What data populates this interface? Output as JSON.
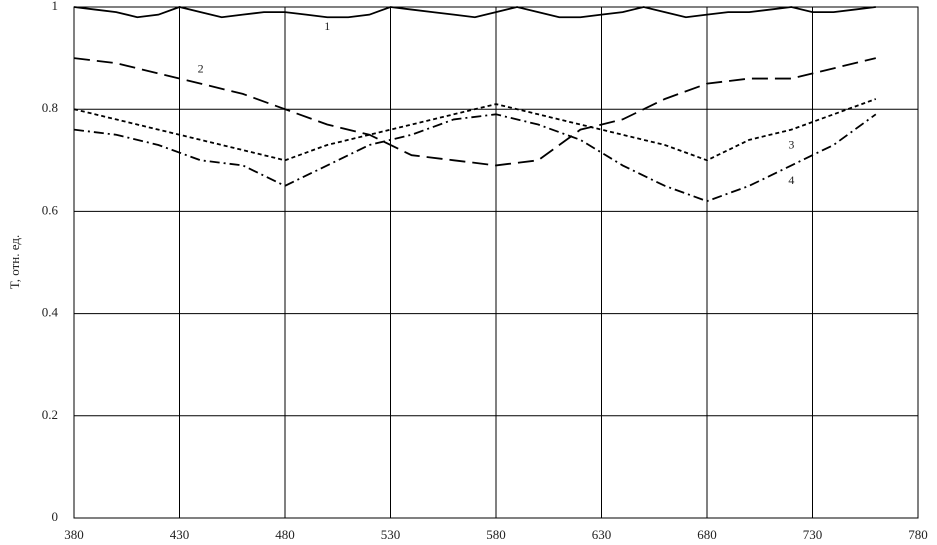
{
  "chart_data": {
    "type": "line",
    "ylabel": "T, отн. ед.",
    "xlim": [
      380,
      780
    ],
    "xticks": [
      380,
      430,
      480,
      530,
      580,
      630,
      680,
      730,
      780
    ],
    "ylim": [
      0,
      1
    ],
    "yticks": [
      0,
      0.2,
      0.4,
      0.6,
      0.8,
      1
    ],
    "grid": true,
    "series": [
      {
        "name": "1",
        "color": "#000000",
        "dash": "none",
        "x": [
          380,
          390,
          400,
          410,
          420,
          430,
          440,
          450,
          460,
          470,
          480,
          490,
          500,
          510,
          520,
          530,
          540,
          550,
          560,
          570,
          580,
          590,
          600,
          610,
          620,
          630,
          640,
          650,
          660,
          670,
          680,
          690,
          700,
          710,
          720,
          730,
          740,
          750,
          760
        ],
        "values": [
          1.0,
          0.995,
          0.99,
          0.98,
          0.985,
          1.0,
          0.99,
          0.98,
          0.985,
          0.99,
          0.99,
          0.985,
          0.98,
          0.98,
          0.985,
          1.0,
          0.995,
          0.99,
          0.985,
          0.98,
          0.99,
          1.0,
          0.99,
          0.98,
          0.98,
          0.985,
          0.99,
          1.0,
          0.99,
          0.98,
          0.985,
          0.99,
          0.99,
          0.995,
          1.0,
          0.99,
          0.99,
          0.995,
          1.0
        ]
      },
      {
        "name": "2",
        "color": "#000000",
        "dash": "16,7",
        "x": [
          380,
          400,
          420,
          440,
          460,
          480,
          500,
          520,
          540,
          560,
          580,
          600,
          620,
          640,
          660,
          680,
          700,
          720,
          740,
          760
        ],
        "values": [
          0.9,
          0.89,
          0.87,
          0.85,
          0.83,
          0.8,
          0.77,
          0.75,
          0.71,
          0.7,
          0.69,
          0.7,
          0.76,
          0.78,
          0.82,
          0.85,
          0.86,
          0.86,
          0.88,
          0.9
        ]
      },
      {
        "name": "3",
        "color": "#000000",
        "dash": "4,3",
        "x": [
          380,
          400,
          420,
          440,
          460,
          480,
          500,
          520,
          540,
          560,
          580,
          600,
          620,
          640,
          660,
          680,
          700,
          720,
          740,
          760
        ],
        "values": [
          0.8,
          0.78,
          0.76,
          0.74,
          0.72,
          0.7,
          0.73,
          0.75,
          0.77,
          0.79,
          0.81,
          0.79,
          0.77,
          0.75,
          0.73,
          0.7,
          0.74,
          0.76,
          0.79,
          0.82
        ]
      },
      {
        "name": "4",
        "color": "#000000",
        "dash": "10,4,2,4",
        "x": [
          380,
          400,
          420,
          440,
          460,
          480,
          500,
          520,
          540,
          560,
          580,
          600,
          620,
          640,
          660,
          680,
          700,
          720,
          740,
          760
        ],
        "values": [
          0.76,
          0.75,
          0.73,
          0.7,
          0.69,
          0.65,
          0.69,
          0.73,
          0.75,
          0.78,
          0.79,
          0.77,
          0.74,
          0.69,
          0.65,
          0.62,
          0.65,
          0.69,
          0.73,
          0.79
        ]
      }
    ]
  }
}
